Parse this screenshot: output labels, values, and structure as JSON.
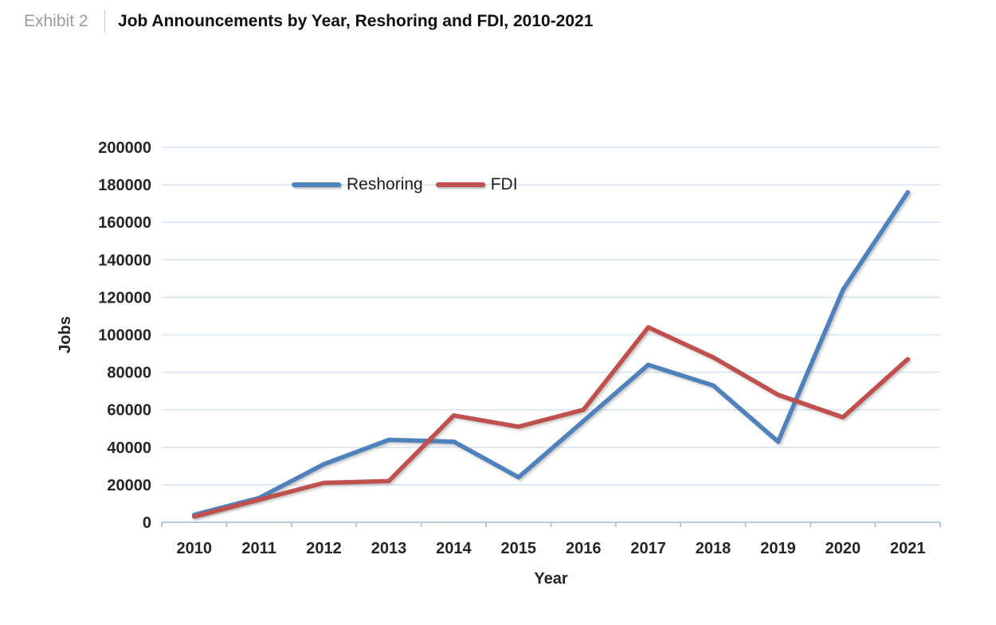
{
  "header": {
    "exhibit_label": "Exhibit 2",
    "title": "Job Announcements by Year, Reshoring and FDI, 2010-2021"
  },
  "chart_data": {
    "type": "line",
    "categories": [
      "2010",
      "2011",
      "2012",
      "2013",
      "2014",
      "2015",
      "2016",
      "2017",
      "2018",
      "2019",
      "2020",
      "2021"
    ],
    "series": [
      {
        "name": "Reshoring",
        "color": "#4f81bd",
        "values": [
          4000,
          13000,
          31000,
          44000,
          43000,
          24000,
          54000,
          84000,
          73000,
          43000,
          124000,
          176000
        ]
      },
      {
        "name": "FDI",
        "color": "#c0504d",
        "values": [
          3000,
          12000,
          21000,
          22000,
          57000,
          51000,
          60000,
          104000,
          88000,
          68000,
          56000,
          87000
        ]
      }
    ],
    "xlabel": "Year",
    "ylabel": "Jobs",
    "ylim": [
      0,
      200000
    ],
    "ytick_step": 20000,
    "grid": true,
    "legend_position": "top-center",
    "gridline_color": "#d9e4f1",
    "axis_line_color": "#aec2dc",
    "tick_label_color": "#262626"
  }
}
